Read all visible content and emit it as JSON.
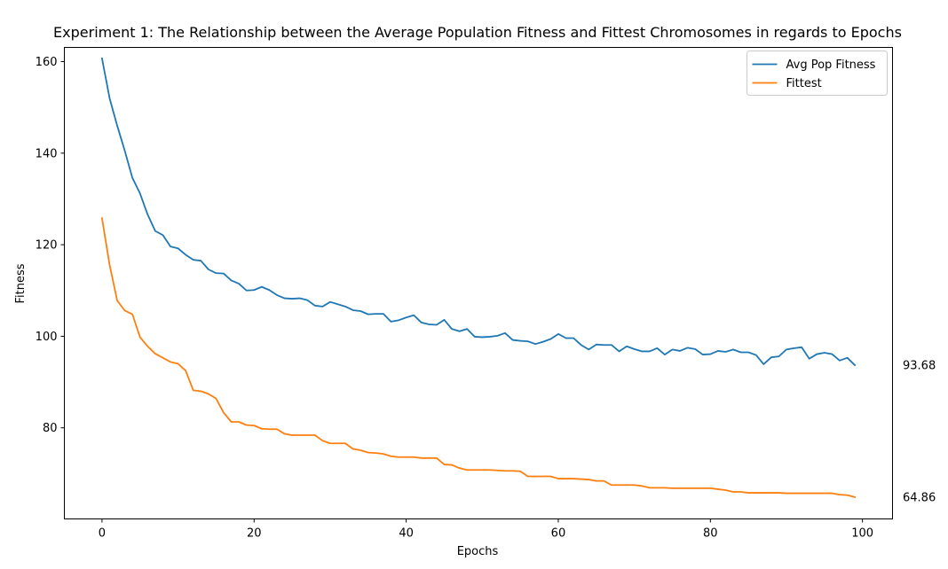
{
  "chart_data": {
    "type": "line",
    "title": "Experiment 1: The Relationship between the Average Population Fitness and Fittest Chromosomes in regards to Epochs",
    "xlabel": "Epochs",
    "ylabel": "Fitness",
    "xlim": [
      -4.95,
      103.95
    ],
    "ylim": [
      60.1,
      163.1
    ],
    "xticks": [
      0,
      20,
      40,
      60,
      80,
      100
    ],
    "yticks": [
      80,
      100,
      120,
      140,
      160
    ],
    "grid": false,
    "legend": "top-right",
    "colors": {
      "Avg Pop Fitness": "#1f77b4",
      "Fittest": "#ff7f0e"
    },
    "x": [
      0,
      1,
      2,
      3,
      4,
      5,
      6,
      7,
      8,
      9,
      10,
      11,
      12,
      13,
      14,
      15,
      16,
      17,
      18,
      19,
      20,
      21,
      22,
      23,
      24,
      25,
      26,
      27,
      28,
      29,
      30,
      31,
      32,
      33,
      34,
      35,
      36,
      37,
      38,
      39,
      40,
      41,
      42,
      43,
      44,
      45,
      46,
      47,
      48,
      49,
      50,
      51,
      52,
      53,
      54,
      55,
      56,
      57,
      58,
      59,
      60,
      61,
      62,
      63,
      64,
      65,
      66,
      67,
      68,
      69,
      70,
      71,
      72,
      73,
      74,
      75,
      76,
      77,
      78,
      79,
      80,
      81,
      82,
      83,
      84,
      85,
      86,
      87,
      88,
      89,
      90,
      91,
      92,
      93,
      94,
      95,
      96,
      97,
      98,
      99
    ],
    "series": [
      {
        "name": "Avg Pop Fitness",
        "values": [
          160.7,
          152.0,
          146.0,
          140.5,
          134.6,
          131.2,
          126.6,
          123.0,
          122.1,
          119.6,
          119.2,
          117.8,
          116.7,
          116.5,
          114.6,
          113.8,
          113.7,
          112.2,
          111.5,
          110.0,
          110.1,
          110.8,
          110.1,
          109.0,
          108.3,
          108.2,
          108.3,
          107.9,
          106.7,
          106.5,
          107.5,
          107.0,
          106.5,
          105.7,
          105.5,
          104.8,
          104.9,
          104.9,
          103.2,
          103.5,
          104.1,
          104.6,
          103.0,
          102.6,
          102.5,
          103.6,
          101.6,
          101.1,
          101.6,
          99.9,
          99.8,
          99.9,
          100.1,
          100.7,
          99.2,
          99.0,
          98.9,
          98.3,
          98.8,
          99.4,
          100.5,
          99.6,
          99.6,
          98.1,
          97.1,
          98.2,
          98.1,
          98.1,
          96.7,
          97.8,
          97.2,
          96.7,
          96.7,
          97.4,
          96.0,
          97.1,
          96.8,
          97.5,
          97.2,
          96.0,
          96.1,
          96.8,
          96.6,
          97.1,
          96.5,
          96.5,
          95.9,
          93.9,
          95.4,
          95.6,
          97.1,
          97.4,
          97.6,
          95.1,
          96.1,
          96.4,
          96.1,
          94.7,
          95.3,
          93.68
        ]
      },
      {
        "name": "Fittest",
        "values": [
          125.8,
          115.6,
          107.8,
          105.6,
          104.8,
          99.8,
          97.8,
          96.2,
          95.3,
          94.4,
          94.0,
          92.5,
          88.2,
          88.0,
          87.4,
          86.4,
          83.3,
          81.3,
          81.3,
          80.6,
          80.5,
          79.8,
          79.7,
          79.7,
          78.7,
          78.4,
          78.4,
          78.4,
          78.4,
          77.2,
          76.6,
          76.6,
          76.6,
          75.4,
          75.1,
          74.6,
          74.5,
          74.3,
          73.8,
          73.6,
          73.6,
          73.6,
          73.4,
          73.4,
          73.4,
          72.0,
          71.9,
          71.2,
          70.8,
          70.8,
          70.8,
          70.8,
          70.7,
          70.6,
          70.6,
          70.5,
          69.4,
          69.4,
          69.4,
          69.4,
          68.9,
          68.9,
          68.9,
          68.8,
          68.7,
          68.4,
          68.4,
          67.5,
          67.5,
          67.5,
          67.5,
          67.3,
          66.9,
          66.9,
          66.9,
          66.8,
          66.8,
          66.8,
          66.8,
          66.8,
          66.8,
          66.6,
          66.4,
          66.0,
          66.0,
          65.8,
          65.8,
          65.8,
          65.8,
          65.8,
          65.7,
          65.7,
          65.7,
          65.7,
          65.7,
          65.7,
          65.7,
          65.4,
          65.3,
          64.86
        ]
      }
    ],
    "annotations": [
      "93.68",
      "64.86"
    ]
  }
}
